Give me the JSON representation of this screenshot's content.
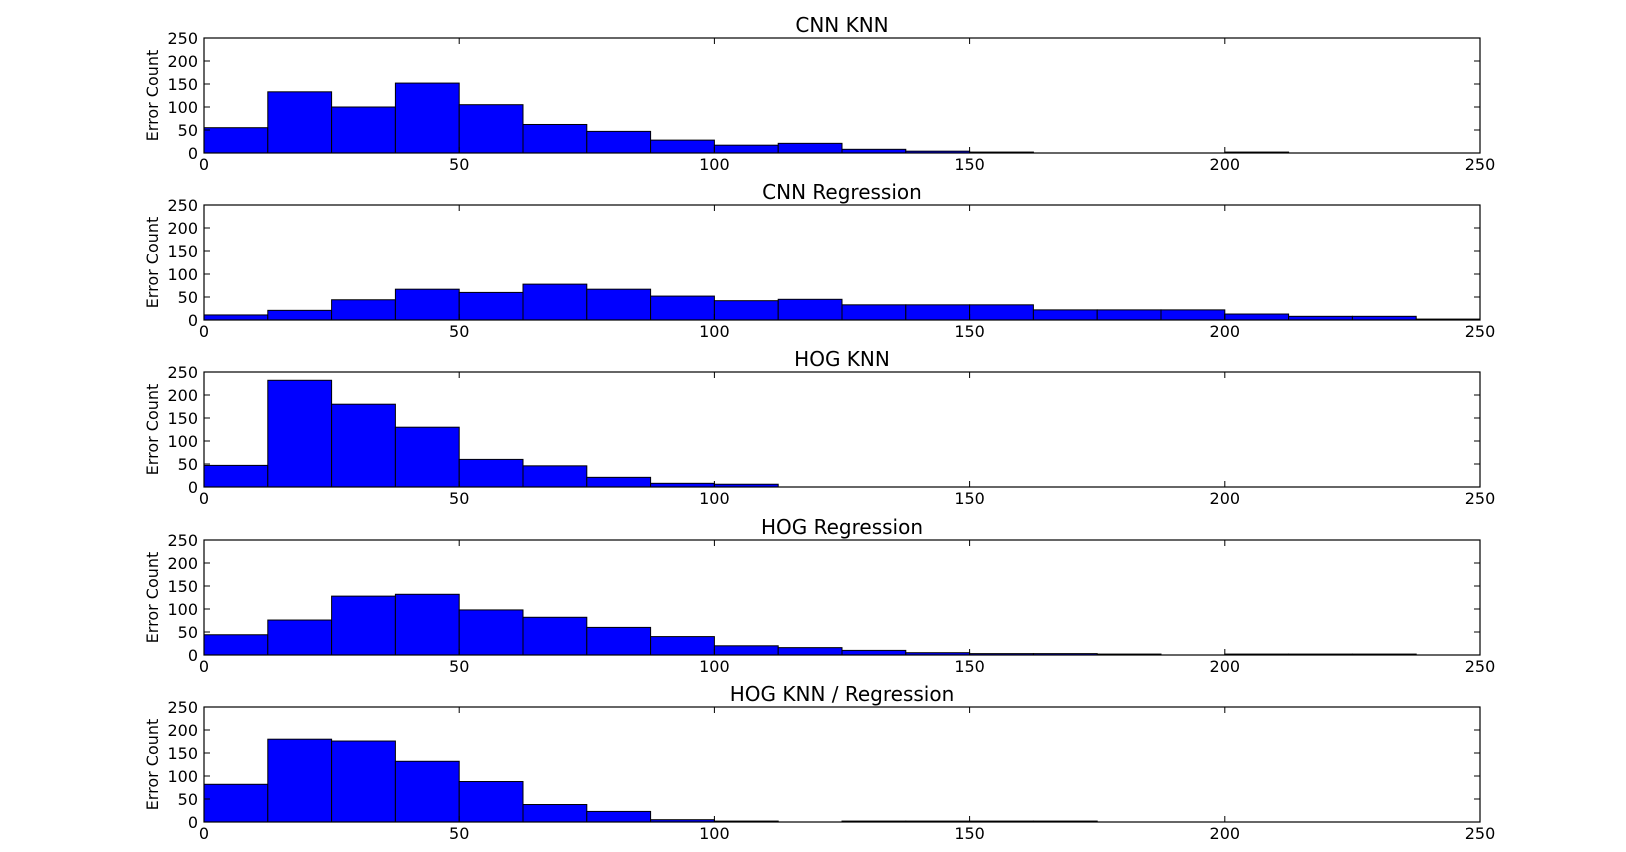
{
  "chart_data": [
    {
      "type": "bar",
      "title": "CNN KNN",
      "ylabel": "Error Count",
      "xlim": [
        0,
        250
      ],
      "ylim": [
        0,
        250
      ],
      "xticks": [
        0,
        50,
        100,
        150,
        200,
        250
      ],
      "yticks": [
        0,
        50,
        100,
        150,
        200,
        250
      ],
      "bin_edges": [
        0,
        12.5,
        25,
        37.5,
        50,
        62.5,
        75,
        87.5,
        100,
        112.5,
        125,
        137.5,
        150,
        162.5,
        175,
        187.5,
        200,
        212.5,
        225,
        237.5,
        250
      ],
      "values": [
        55,
        133,
        100,
        152,
        105,
        62,
        47,
        28,
        17,
        21,
        8,
        4,
        2,
        0,
        0,
        0,
        2,
        0,
        0,
        0
      ]
    },
    {
      "type": "bar",
      "title": "CNN Regression",
      "ylabel": "Error Count",
      "xlim": [
        0,
        250
      ],
      "ylim": [
        0,
        250
      ],
      "xticks": [
        0,
        50,
        100,
        150,
        200,
        250
      ],
      "yticks": [
        0,
        50,
        100,
        150,
        200,
        250
      ],
      "bin_edges": [
        0,
        12.5,
        25,
        37.5,
        50,
        62.5,
        75,
        87.5,
        100,
        112.5,
        125,
        137.5,
        150,
        162.5,
        175,
        187.5,
        200,
        212.5,
        225,
        237.5,
        250
      ],
      "values": [
        11,
        21,
        44,
        67,
        60,
        78,
        67,
        52,
        42,
        45,
        33,
        33,
        33,
        22,
        22,
        22,
        13,
        8,
        8,
        2
      ]
    },
    {
      "type": "bar",
      "title": "HOG KNN",
      "ylabel": "Error Count",
      "xlim": [
        0,
        250
      ],
      "ylim": [
        0,
        250
      ],
      "xticks": [
        0,
        50,
        100,
        150,
        200,
        250
      ],
      "yticks": [
        0,
        50,
        100,
        150,
        200,
        250
      ],
      "bin_edges": [
        0,
        12.5,
        25,
        37.5,
        50,
        62.5,
        75,
        87.5,
        100,
        112.5,
        125,
        137.5,
        150,
        162.5,
        175,
        187.5,
        200,
        212.5,
        225,
        237.5,
        250
      ],
      "values": [
        47,
        232,
        180,
        130,
        60,
        46,
        21,
        8,
        6,
        0,
        0,
        0,
        0,
        0,
        0,
        0,
        0,
        0,
        0,
        0
      ]
    },
    {
      "type": "bar",
      "title": "HOG Regression",
      "ylabel": "Error Count",
      "xlim": [
        0,
        250
      ],
      "ylim": [
        0,
        250
      ],
      "xticks": [
        0,
        50,
        100,
        150,
        200,
        250
      ],
      "yticks": [
        0,
        50,
        100,
        150,
        200,
        250
      ],
      "bin_edges": [
        0,
        12.5,
        25,
        37.5,
        50,
        62.5,
        75,
        87.5,
        100,
        112.5,
        125,
        137.5,
        150,
        162.5,
        175,
        187.5,
        200,
        212.5,
        225,
        237.5,
        250
      ],
      "values": [
        44,
        76,
        128,
        132,
        98,
        82,
        60,
        40,
        20,
        16,
        10,
        5,
        3,
        3,
        2,
        0,
        2,
        2,
        2,
        0
      ]
    },
    {
      "type": "bar",
      "title": "HOG KNN / Regression",
      "ylabel": "Error Count",
      "xlim": [
        0,
        250
      ],
      "ylim": [
        0,
        250
      ],
      "xticks": [
        0,
        50,
        100,
        150,
        200,
        250
      ],
      "yticks": [
        0,
        50,
        100,
        150,
        200,
        250
      ],
      "bin_edges": [
        0,
        12.5,
        25,
        37.5,
        50,
        62.5,
        75,
        87.5,
        100,
        112.5,
        125,
        137.5,
        150,
        162.5,
        175,
        187.5,
        200,
        212.5,
        225,
        237.5,
        250
      ],
      "values": [
        82,
        180,
        176,
        132,
        88,
        38,
        23,
        5,
        2,
        0,
        2,
        2,
        2,
        2,
        0,
        0,
        0,
        0,
        0,
        0
      ]
    }
  ]
}
